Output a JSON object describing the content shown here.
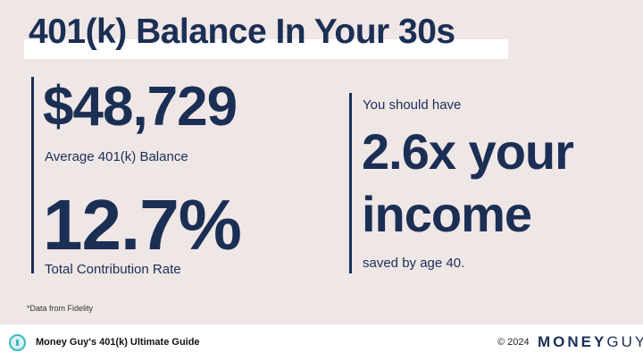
{
  "title": "401(k) Balance In Your 30s",
  "left": {
    "balance_value": "$48,729",
    "balance_label": "Average 401(k) Balance",
    "rate_value": "12.7%",
    "rate_label": "Total Contribution Rate"
  },
  "right": {
    "intro": "You should have",
    "line1": "2.6x your",
    "line2": "income",
    "outro": "saved by age 40."
  },
  "note": "*Data from Fidelity",
  "footer": {
    "guide_title": "Money Guy's 401(k) Ultimate Guide",
    "copyright": "© 2024",
    "logo_text_bold": "MONEY",
    "logo_text_light": "GUY",
    "icon": "download-bubble-icon"
  },
  "colors": {
    "text": "#1b2f55",
    "background": "#efe6e6",
    "accent": "#3cb8c0"
  }
}
